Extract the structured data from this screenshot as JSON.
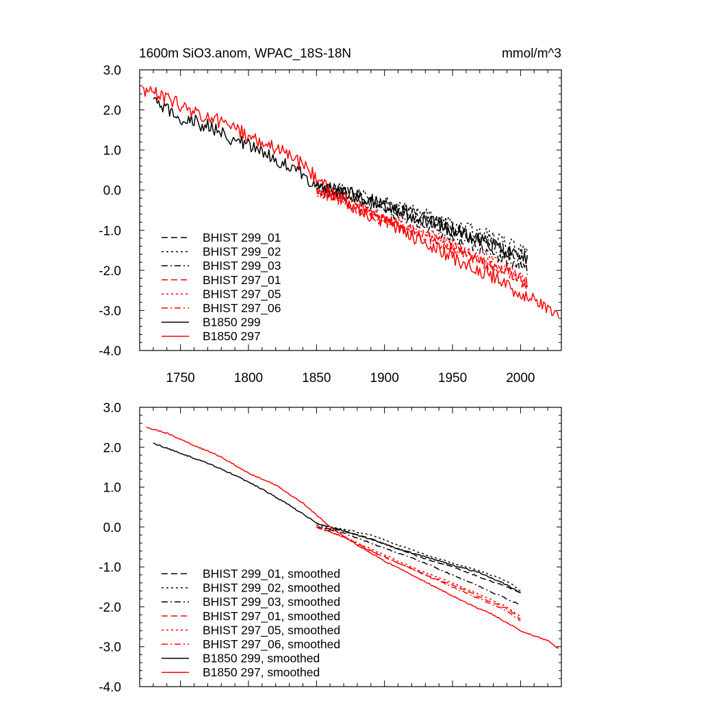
{
  "chart_data": [
    {
      "type": "line",
      "title": "1600m SiO3.anom, WPAC_18S-18N",
      "units": "mmol/m^3",
      "xlabel": "",
      "ylabel": "",
      "xlim": [
        1720,
        2030
      ],
      "ylim": [
        -4.0,
        3.0
      ],
      "xticks": [
        "1750",
        "1800",
        "1850",
        "1900",
        "1950",
        "2000"
      ],
      "yticks": [
        "3.0",
        "2.0",
        "1.0",
        "0.0",
        "-1.0",
        "-2.0",
        "-3.0",
        "-4.0"
      ],
      "grid": false,
      "legend_position": "bottom-left",
      "series": [
        {
          "name": "BHIST 299_01",
          "color": "#000000",
          "dash": "dashed",
          "noise": 0.16,
          "x": [
            1850,
            1870,
            1890,
            1910,
            1930,
            1950,
            1970,
            1990,
            2005
          ],
          "y": [
            0.05,
            -0.05,
            -0.25,
            -0.45,
            -0.7,
            -0.95,
            -1.2,
            -1.5,
            -1.7
          ]
        },
        {
          "name": "BHIST 299_02",
          "color": "#000000",
          "dash": "dotted",
          "noise": 0.16,
          "x": [
            1850,
            1870,
            1890,
            1910,
            1930,
            1950,
            1970,
            1990,
            2005
          ],
          "y": [
            0.05,
            0.0,
            -0.2,
            -0.4,
            -0.6,
            -0.85,
            -1.05,
            -1.3,
            -1.6
          ]
        },
        {
          "name": "BHIST 299_03",
          "color": "#000000",
          "dash": "dashdot",
          "noise": 0.16,
          "x": [
            1850,
            1870,
            1890,
            1910,
            1930,
            1950,
            1970,
            1990,
            2005
          ],
          "y": [
            0.0,
            -0.15,
            -0.35,
            -0.6,
            -0.85,
            -1.15,
            -1.45,
            -1.75,
            -1.95
          ]
        },
        {
          "name": "BHIST 297_01",
          "color": "#ff0000",
          "dash": "dashed",
          "noise": 0.16,
          "x": [
            1850,
            1870,
            1890,
            1910,
            1930,
            1950,
            1970,
            1990,
            2005
          ],
          "y": [
            0.0,
            -0.3,
            -0.6,
            -0.9,
            -1.15,
            -1.45,
            -1.75,
            -2.05,
            -2.35
          ]
        },
        {
          "name": "BHIST 297_05",
          "color": "#ff0000",
          "dash": "dotted",
          "noise": 0.16,
          "x": [
            1850,
            1870,
            1890,
            1910,
            1930,
            1950,
            1970,
            1990,
            2005
          ],
          "y": [
            0.0,
            -0.25,
            -0.55,
            -0.8,
            -1.1,
            -1.35,
            -1.65,
            -1.95,
            -2.25
          ]
        },
        {
          "name": "BHIST 297_06",
          "color": "#ff0000",
          "dash": "dashdot",
          "noise": 0.16,
          "x": [
            1850,
            1870,
            1890,
            1910,
            1930,
            1950,
            1970,
            1990,
            2005
          ],
          "y": [
            0.0,
            -0.3,
            -0.6,
            -0.85,
            -1.15,
            -1.4,
            -1.7,
            -2.0,
            -2.35
          ]
        },
        {
          "name": "B1850 299",
          "color": "#000000",
          "dash": "solid",
          "noise": 0.18,
          "x": [
            1730,
            1750,
            1770,
            1790,
            1810,
            1830,
            1850,
            1870,
            1890,
            1910,
            1930,
            1950,
            1970,
            1990,
            2005
          ],
          "y": [
            2.2,
            1.8,
            1.6,
            1.25,
            0.95,
            0.6,
            0.15,
            -0.05,
            -0.25,
            -0.5,
            -0.75,
            -1.0,
            -1.25,
            -1.5,
            -1.7
          ]
        },
        {
          "name": "B1850 297",
          "color": "#ff0000",
          "dash": "solid",
          "noise": 0.18,
          "x": [
            1722,
            1740,
            1760,
            1780,
            1800,
            1820,
            1840,
            1860,
            1880,
            1900,
            1920,
            1940,
            1960,
            1980,
            2000,
            2015,
            2028
          ],
          "y": [
            2.5,
            2.3,
            1.95,
            1.7,
            1.35,
            1.05,
            0.65,
            0.0,
            -0.45,
            -0.8,
            -1.15,
            -1.5,
            -1.85,
            -2.15,
            -2.6,
            -2.85,
            -3.15
          ]
        }
      ]
    },
    {
      "type": "line",
      "title": "",
      "xlabel": "",
      "ylabel": "",
      "xlim": [
        1720,
        2030
      ],
      "ylim": [
        -4.0,
        3.0
      ],
      "xticks": [],
      "yticks": [
        "3.0",
        "2.0",
        "1.0",
        "0.0",
        "-1.0",
        "-2.0",
        "-3.0",
        "-4.0"
      ],
      "grid": false,
      "legend_position": "bottom-left",
      "series": [
        {
          "name": "BHIST 299_01, smoothed",
          "color": "#000000",
          "dash": "dashed",
          "noise": 0.015,
          "x": [
            1850,
            1870,
            1890,
            1910,
            1930,
            1950,
            1970,
            1990,
            2000
          ],
          "y": [
            0.0,
            -0.1,
            -0.3,
            -0.55,
            -0.8,
            -1.0,
            -1.25,
            -1.5,
            -1.65
          ]
        },
        {
          "name": "BHIST 299_02, smoothed",
          "color": "#000000",
          "dash": "dotted",
          "noise": 0.015,
          "x": [
            1850,
            1870,
            1890,
            1910,
            1930,
            1950,
            1970,
            1990,
            2000
          ],
          "y": [
            0.05,
            -0.05,
            -0.2,
            -0.45,
            -0.7,
            -0.9,
            -1.1,
            -1.35,
            -1.6
          ]
        },
        {
          "name": "BHIST 299_03, smoothed",
          "color": "#000000",
          "dash": "dashdot",
          "noise": 0.015,
          "x": [
            1850,
            1870,
            1890,
            1910,
            1930,
            1950,
            1970,
            1990,
            2000
          ],
          "y": [
            0.0,
            -0.15,
            -0.4,
            -0.65,
            -0.9,
            -1.2,
            -1.5,
            -1.8,
            -1.95
          ]
        },
        {
          "name": "BHIST 297_01, smoothed",
          "color": "#ff0000",
          "dash": "dashed",
          "noise": 0.015,
          "x": [
            1850,
            1870,
            1890,
            1910,
            1930,
            1950,
            1970,
            1990,
            2000
          ],
          "y": [
            0.0,
            -0.25,
            -0.6,
            -0.9,
            -1.2,
            -1.45,
            -1.75,
            -2.05,
            -2.3
          ]
        },
        {
          "name": "BHIST 297_05, smoothed",
          "color": "#ff0000",
          "dash": "dotted",
          "noise": 0.015,
          "x": [
            1850,
            1870,
            1890,
            1910,
            1930,
            1950,
            1970,
            1990,
            2000
          ],
          "y": [
            0.0,
            -0.25,
            -0.55,
            -0.85,
            -1.15,
            -1.4,
            -1.7,
            -2.0,
            -2.25
          ]
        },
        {
          "name": "BHIST 297_06, smoothed",
          "color": "#ff0000",
          "dash": "dashdot",
          "noise": 0.015,
          "x": [
            1850,
            1870,
            1890,
            1910,
            1930,
            1950,
            1970,
            1990,
            2000
          ],
          "y": [
            0.0,
            -0.25,
            -0.6,
            -0.9,
            -1.2,
            -1.5,
            -1.8,
            -2.1,
            -2.35
          ]
        },
        {
          "name": "B1850 299, smoothed",
          "color": "#000000",
          "dash": "solid",
          "noise": 0.015,
          "x": [
            1730,
            1750,
            1770,
            1790,
            1810,
            1830,
            1850,
            1870,
            1890,
            1910,
            1930,
            1950,
            1970,
            1990,
            2000
          ],
          "y": [
            2.1,
            1.85,
            1.6,
            1.3,
            0.95,
            0.55,
            0.1,
            -0.1,
            -0.3,
            -0.55,
            -0.75,
            -0.95,
            -1.15,
            -1.45,
            -1.65
          ]
        },
        {
          "name": "B1850 297, smoothed",
          "color": "#ff0000",
          "dash": "solid",
          "noise": 0.015,
          "x": [
            1725,
            1740,
            1760,
            1780,
            1800,
            1820,
            1840,
            1860,
            1880,
            1900,
            1920,
            1940,
            1960,
            1980,
            2000,
            2020,
            2028
          ],
          "y": [
            2.5,
            2.35,
            2.05,
            1.75,
            1.35,
            1.05,
            0.6,
            0.0,
            -0.45,
            -0.85,
            -1.2,
            -1.55,
            -1.9,
            -2.2,
            -2.6,
            -2.85,
            -3.05
          ]
        }
      ]
    }
  ]
}
